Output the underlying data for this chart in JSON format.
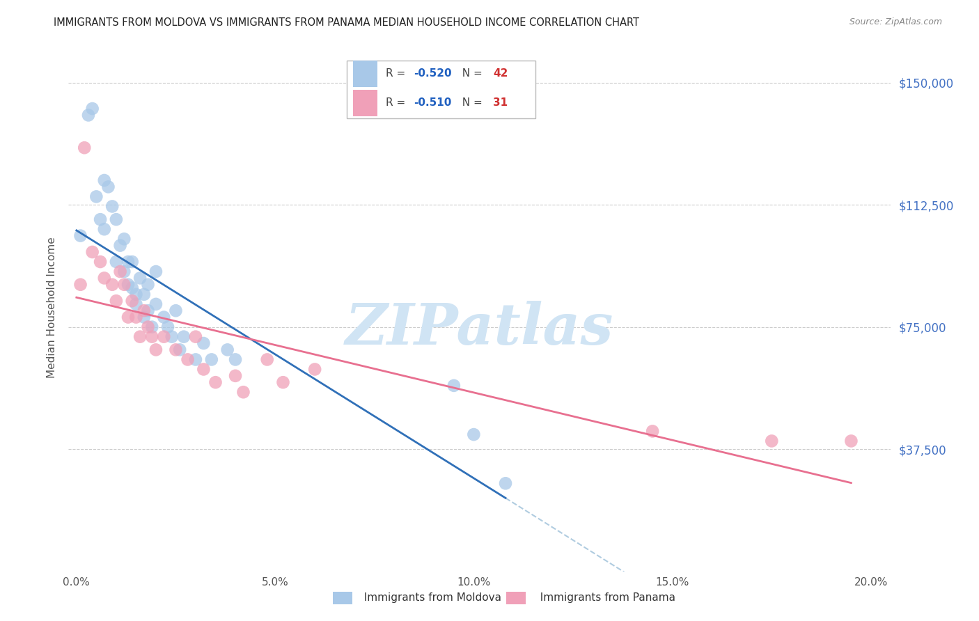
{
  "title": "IMMIGRANTS FROM MOLDOVA VS IMMIGRANTS FROM PANAMA MEDIAN HOUSEHOLD INCOME CORRELATION CHART",
  "source": "Source: ZipAtlas.com",
  "ylabel": "Median Household Income",
  "xlabel_ticks": [
    "0.0%",
    "5.0%",
    "10.0%",
    "15.0%",
    "20.0%"
  ],
  "xlabel_vals": [
    0.0,
    0.05,
    0.1,
    0.15,
    0.2
  ],
  "ytick_labels": [
    "$37,500",
    "$75,000",
    "$112,500",
    "$150,000"
  ],
  "ytick_vals": [
    37500,
    75000,
    112500,
    150000
  ],
  "ylim": [
    0,
    162000
  ],
  "xlim": [
    -0.002,
    0.205
  ],
  "moldova_color": "#A8C8E8",
  "panama_color": "#F0A0B8",
  "moldova_line_color": "#3070B8",
  "panama_line_color": "#E87090",
  "dash_color": "#B0CCE0",
  "legend_R_color": "#2060C0",
  "legend_N_color": "#D03030",
  "watermark": "ZIPatlas",
  "watermark_color": "#D0E4F4",
  "moldova_R": -0.52,
  "moldova_N": 42,
  "panama_R": -0.51,
  "panama_N": 31,
  "moldova_x": [
    0.001,
    0.003,
    0.004,
    0.005,
    0.006,
    0.007,
    0.007,
    0.008,
    0.009,
    0.01,
    0.01,
    0.011,
    0.012,
    0.012,
    0.013,
    0.013,
    0.014,
    0.014,
    0.015,
    0.015,
    0.016,
    0.017,
    0.017,
    0.018,
    0.018,
    0.019,
    0.02,
    0.02,
    0.022,
    0.023,
    0.024,
    0.025,
    0.026,
    0.027,
    0.03,
    0.032,
    0.034,
    0.038,
    0.04,
    0.095,
    0.1,
    0.108
  ],
  "moldova_y": [
    103000,
    140000,
    142000,
    115000,
    108000,
    120000,
    105000,
    118000,
    112000,
    108000,
    95000,
    100000,
    92000,
    102000,
    95000,
    88000,
    95000,
    87000,
    85000,
    82000,
    90000,
    78000,
    85000,
    80000,
    88000,
    75000,
    82000,
    92000,
    78000,
    75000,
    72000,
    80000,
    68000,
    72000,
    65000,
    70000,
    65000,
    68000,
    65000,
    57000,
    42000,
    27000
  ],
  "panama_x": [
    0.001,
    0.002,
    0.004,
    0.006,
    0.007,
    0.009,
    0.01,
    0.011,
    0.012,
    0.013,
    0.014,
    0.015,
    0.016,
    0.017,
    0.018,
    0.019,
    0.02,
    0.022,
    0.025,
    0.028,
    0.03,
    0.032,
    0.035,
    0.04,
    0.042,
    0.048,
    0.052,
    0.06,
    0.145,
    0.175,
    0.195
  ],
  "panama_y": [
    88000,
    130000,
    98000,
    95000,
    90000,
    88000,
    83000,
    92000,
    88000,
    78000,
    83000,
    78000,
    72000,
    80000,
    75000,
    72000,
    68000,
    72000,
    68000,
    65000,
    72000,
    62000,
    58000,
    60000,
    55000,
    65000,
    58000,
    62000,
    43000,
    40000,
    40000
  ]
}
